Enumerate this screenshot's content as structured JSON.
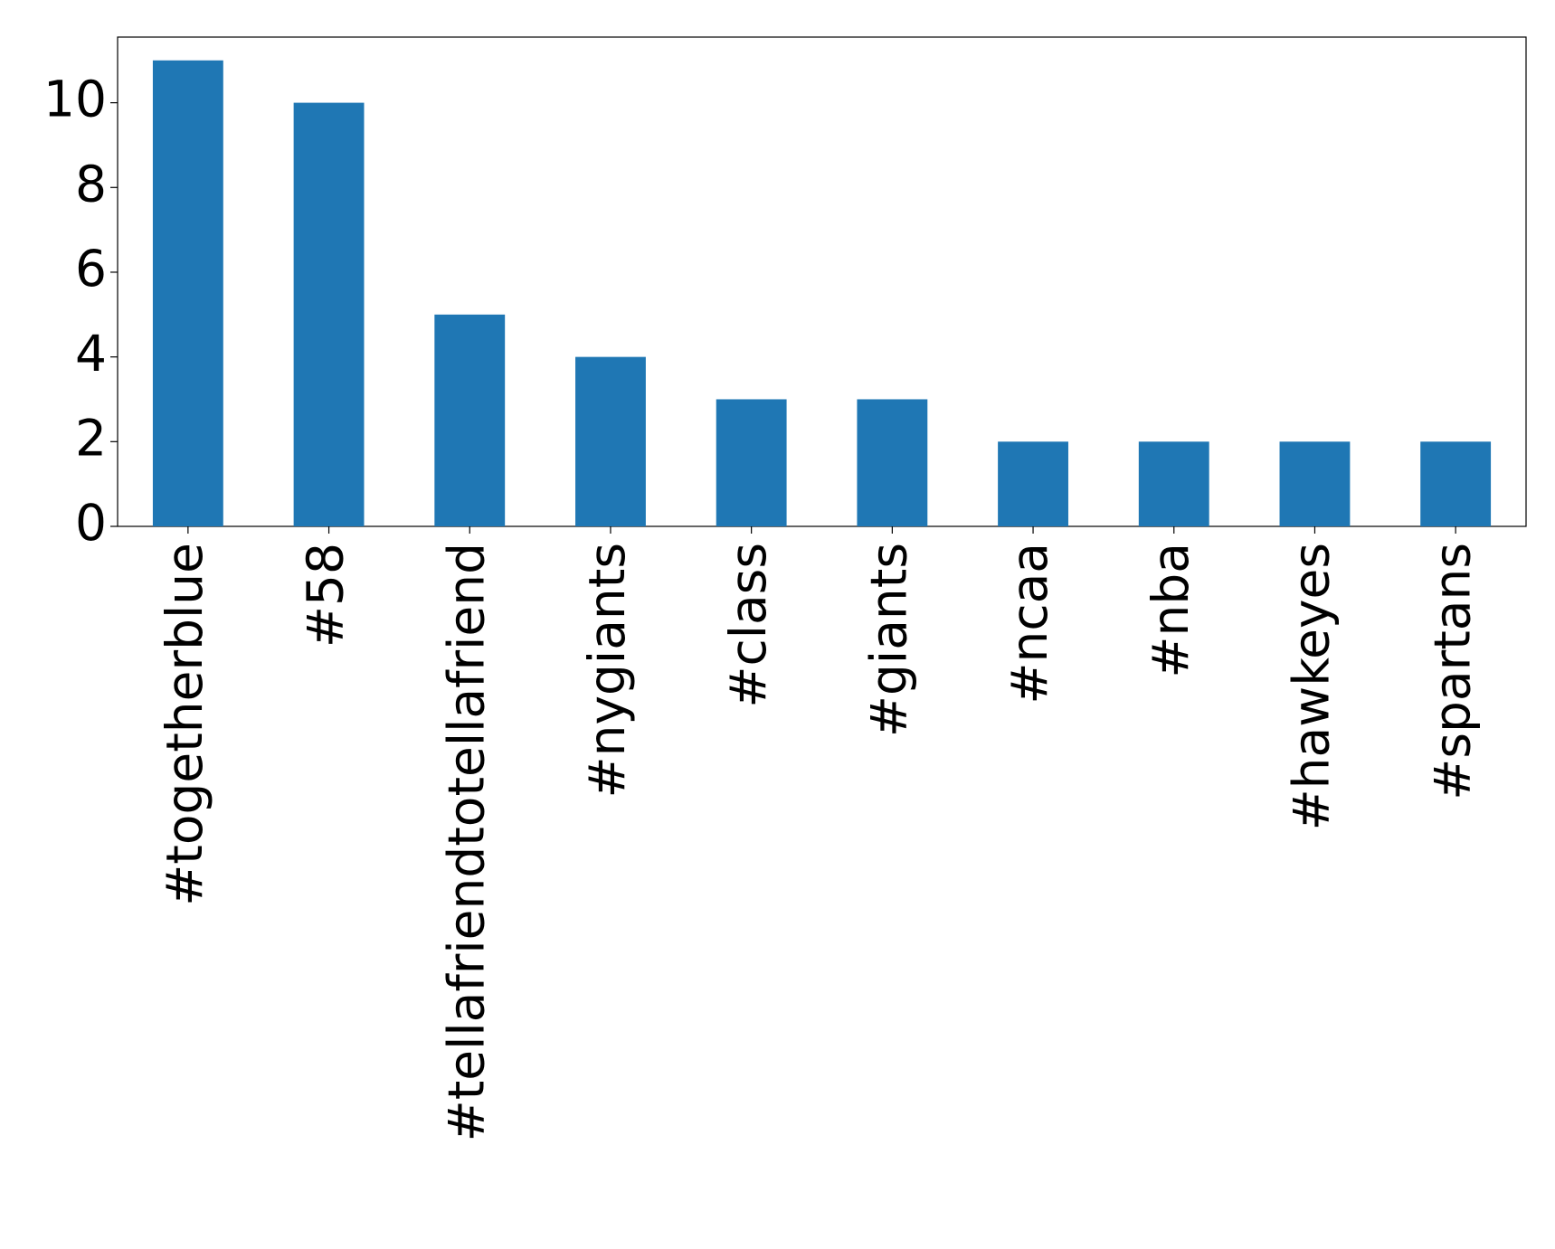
{
  "chart_data": {
    "type": "bar",
    "categories": [
      "#togetherblue",
      "#58",
      "#tellafriendtotellafriend",
      "#nygiants",
      "#class",
      "#giants",
      "#ncaa",
      "#nba",
      "#hawkeyes",
      "#spartans"
    ],
    "values": [
      11,
      10,
      5,
      4,
      3,
      3,
      2,
      2,
      2,
      2
    ],
    "color": "#1f77b4",
    "ylim": [
      0,
      11.55
    ],
    "yticks": [
      0,
      2,
      4,
      6,
      8,
      10
    ],
    "grid": false
  }
}
